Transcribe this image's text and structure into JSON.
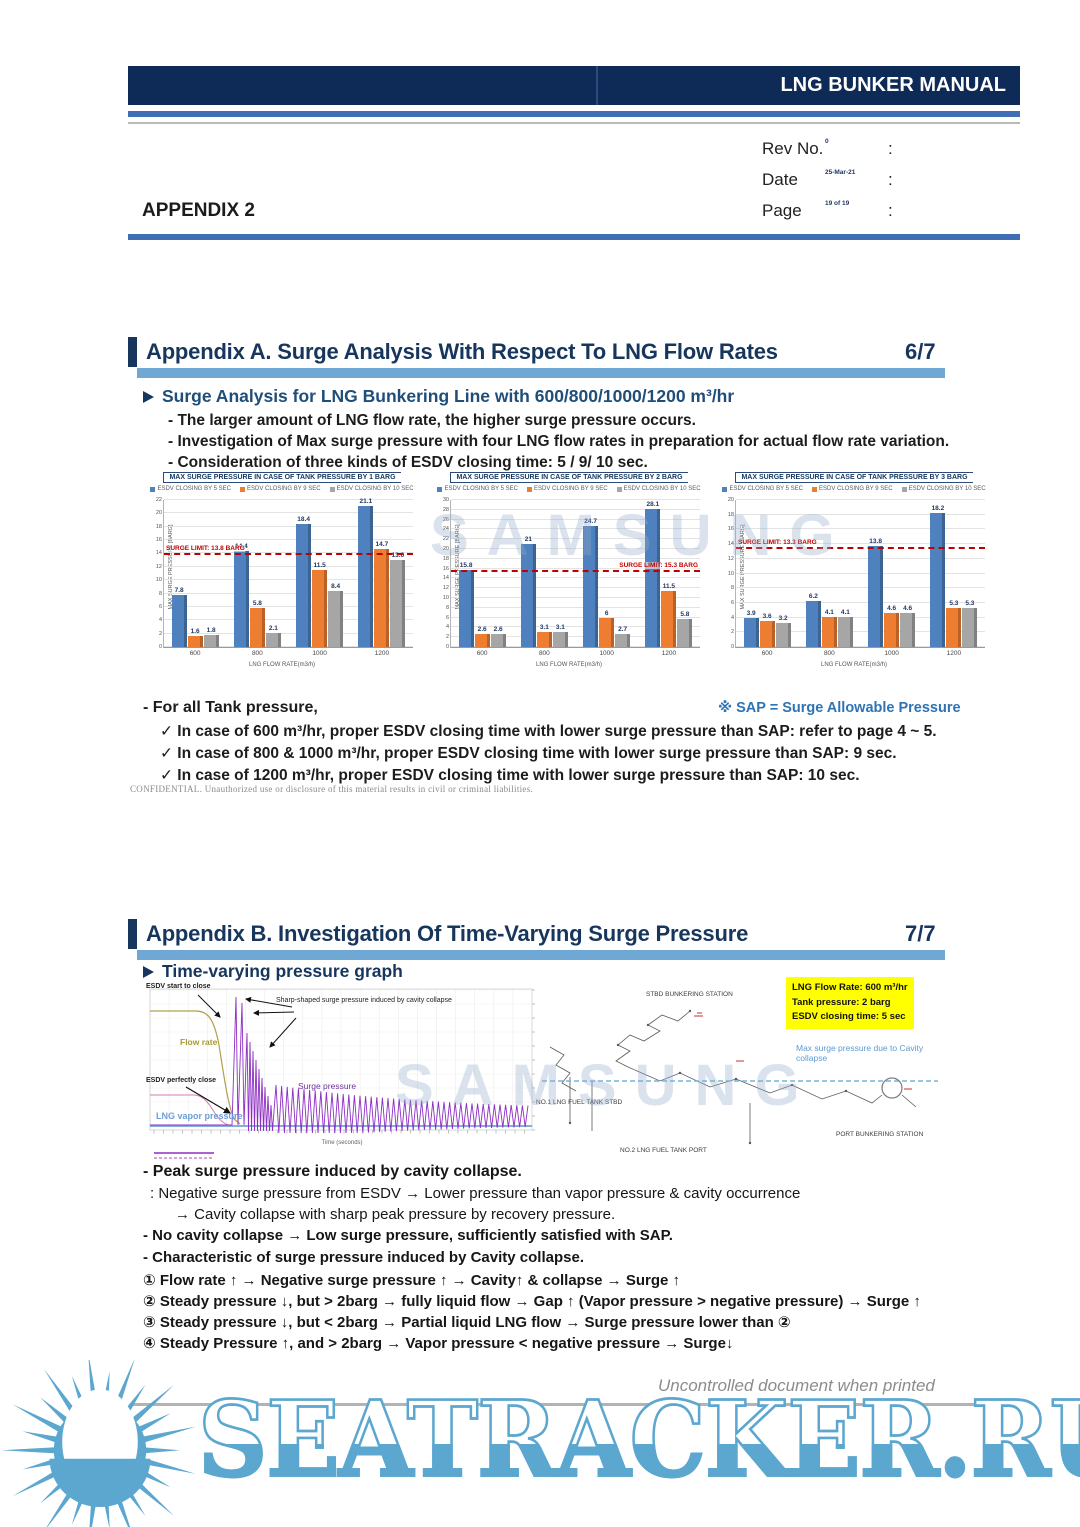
{
  "header": {
    "manual_title": "LNG BUNKER MANUAL",
    "appendix_label": "APPENDIX 2",
    "rows": [
      {
        "label": "Rev No.",
        "sep": ":",
        "value": "0"
      },
      {
        "label": "Date",
        "sep": ":",
        "value": "25-Mar-21"
      },
      {
        "label": "Page",
        "sep": ":",
        "value": "19 of 19"
      }
    ]
  },
  "section_a": {
    "title": "Appendix A. Surge Analysis With Respect To LNG Flow Rates",
    "page_marker": "6/7",
    "heading": "Surge Analysis for LNG Bunkering Line with 600/800/1000/1200 m³/hr",
    "points": [
      "- The larger amount of LNG flow rate, the higher surge pressure occurs.",
      "- Investigation of Max surge pressure with four LNG flow rates in preparation for actual flow rate variation.",
      "- Consideration of three kinds of ESDV closing time: 5 / 9/ 10 sec."
    ],
    "notes_lead": "- For all Tank pressure,",
    "sap_note": "※ SAP = Surge Allowable Pressure",
    "checks": [
      "✓ In case of 600 m³/hr, proper ESDV closing time with lower surge pressure than SAP: refer to page 4 ~ 5.",
      "✓ In case of 800 & 1000 m³/hr, proper ESDV closing time with lower surge pressure than SAP: 9 sec.",
      "✓ In case of 1200 m³/hr, proper ESDV closing time with lower surge pressure than SAP: 10 sec."
    ],
    "confidential": "CONFIDENTIAL. Unauthorized use or disclosure of this material results in civil or criminal liabilities."
  },
  "chart_data": [
    {
      "type": "bar",
      "title": "MAX SURGE PRESSURE IN CASE OF TANK PRESSURE BY 1 BARG",
      "categories": [
        "600",
        "800",
        "1000",
        "1200"
      ],
      "series": [
        {
          "name": "ESDV CLOSING BY 5 SEC",
          "color": "#4e81bd",
          "values": [
            7.8,
            14.4,
            18.4,
            21.1
          ],
          "labels": [
            "7.8",
            "14.4",
            "18.4",
            "21.1"
          ]
        },
        {
          "name": "ESDV CLOSING BY 9 SEC",
          "color": "#ed7d31",
          "values": [
            1.6,
            5.8,
            11.5,
            14.7
          ],
          "labels": [
            "1.6",
            "5.8",
            "11.5",
            "14.7"
          ]
        },
        {
          "name": "ESDV CLOSING BY 10 SEC",
          "color": "#a6a6a6",
          "values": [
            1.8,
            2.1,
            8.4,
            13.0
          ],
          "labels": [
            "1.8",
            "2.1",
            "8.4",
            "13.0"
          ]
        }
      ],
      "xlabel": "LNG FLOW RATE(m3/h)",
      "ylabel": "MAX SURGE PRESSURE [BARG]",
      "ylim": [
        0,
        22
      ],
      "ytick_step": 2,
      "surge_limit": {
        "value": 13.8,
        "label": "SURGE LIMIT: 13.8 BARG",
        "side": "left"
      }
    },
    {
      "type": "bar",
      "title": "MAX SURGE PRESSURE IN CASE OF TANK PRESSURE BY 2 BARG",
      "categories": [
        "600",
        "800",
        "1000",
        "1200"
      ],
      "series": [
        {
          "name": "ESDV CLOSING BY 5 SEC",
          "color": "#4e81bd",
          "values": [
            15.8,
            21,
            24.7,
            28.1
          ],
          "labels": [
            "15.8",
            "21",
            "24.7",
            "28.1"
          ]
        },
        {
          "name": "ESDV CLOSING BY 9 SEC",
          "color": "#ed7d31",
          "values": [
            2.6,
            3.1,
            6,
            11.5
          ],
          "labels": [
            "2.6",
            "3.1",
            "6",
            "11.5"
          ]
        },
        {
          "name": "ESDV CLOSING BY 10 SEC",
          "color": "#a6a6a6",
          "values": [
            2.6,
            3.1,
            2.7,
            5.8
          ],
          "labels": [
            "2.6",
            "3.1",
            "2.7",
            "5.8"
          ]
        }
      ],
      "xlabel": "LNG FLOW RATE(m3/h)",
      "ylabel": "MAX SURGE PRESSURE [BARG]",
      "ylim": [
        0,
        30
      ],
      "ytick_step": 2,
      "surge_limit": {
        "value": 15.3,
        "label": "SURGE LIMIT: 15.3 BARG",
        "side": "right"
      }
    },
    {
      "type": "bar",
      "title": "MAX SURGE PRESSURE IN CASE OF TANK PRESSURE BY 3 BARG",
      "categories": [
        "600",
        "800",
        "1000",
        "1200"
      ],
      "series": [
        {
          "name": "ESDV CLOSING BY 5 SEC",
          "color": "#4e81bd",
          "values": [
            3.9,
            6.2,
            13.8,
            18.2
          ],
          "labels": [
            "3.9",
            "6.2",
            "13.8",
            "18.2"
          ]
        },
        {
          "name": "ESDV CLOSING BY 9 SEC",
          "color": "#ed7d31",
          "values": [
            3.6,
            4.1,
            4.6,
            5.3
          ],
          "labels": [
            "3.6",
            "4.1",
            "4.6",
            "5.3"
          ]
        },
        {
          "name": "ESDV CLOSING BY 10 SEC",
          "color": "#a6a6a6",
          "values": [
            3.2,
            4.1,
            4.6,
            5.3
          ],
          "labels": [
            "3.2",
            "4.1",
            "4.6",
            "5.3"
          ]
        }
      ],
      "xlabel": "LNG FLOW RATE(m3/h)",
      "ylabel": "MAX SURGE PRESSURE [BARG]",
      "ylim": [
        0,
        20
      ],
      "ytick_step": 2,
      "surge_limit": {
        "value": 13.3,
        "label": "SURGE LIMIT: 13.3 BARG",
        "side": "left"
      }
    }
  ],
  "section_b": {
    "title": "Appendix B. Investigation Of Time-Varying Surge Pressure",
    "page_marker": "7/7",
    "heading": "Time-varying pressure graph",
    "graph_labels": {
      "esdv_start": "ESDV start to close",
      "sharp": "Sharp-shaped surge pressure induced by cavity collapse",
      "flow_rate": "Flow rate",
      "esdv_close": "ESDV perfectly close",
      "surge": "Surge pressure",
      "vapor": "LNG vapor pressure",
      "xaxis": "Time (seconds)"
    },
    "diagram_labels": {
      "stbd": "STBD BUNKERING STATION",
      "port": "PORT BUNKERING STATION",
      "tank1": "NO.1 LNG FUEL TANK STBD",
      "tank2": "NO.2 LNG FUEL TANK PORT",
      "max_surge": "Max surge pressure due to Cavity collapse"
    },
    "info_box": [
      "LNG Flow Rate: 600 m³/hr",
      "Tank pressure: 2 barg",
      "ESDV closing time: 5 sec"
    ],
    "body": [
      "- Peak surge pressure induced by cavity collapse.",
      ": Negative surge pressure from ESDV → Lower pressure than vapor pressure & cavity occurrence",
      "→ Cavity collapse with sharp peak pressure by recovery pressure.",
      "- No cavity collapse → Low surge pressure, sufficiently satisfied with SAP.",
      "- Characteristic of surge pressure induced by Cavity collapse.",
      "① Flow rate ↑ → Negative surge pressure ↑ → Cavity↑ & collapse → Surge ↑",
      "② Steady pressure ↓, but > 2barg → fully liquid flow → Gap ↑ (Vapor pressure > negative pressure) → Surge ↑",
      "③ Steady pressure ↓, but < 2barg → Partial liquid LNG flow → Surge pressure lower than ②",
      "④ Steady Pressure ↑, and > 2barg → Vapor pressure < negative pressure → Surge↓"
    ]
  },
  "footer": {
    "uncontrolled": "Uncontrolled document when printed",
    "site": "SEATRACKER.RU"
  },
  "watermark": "SAMSUNG"
}
